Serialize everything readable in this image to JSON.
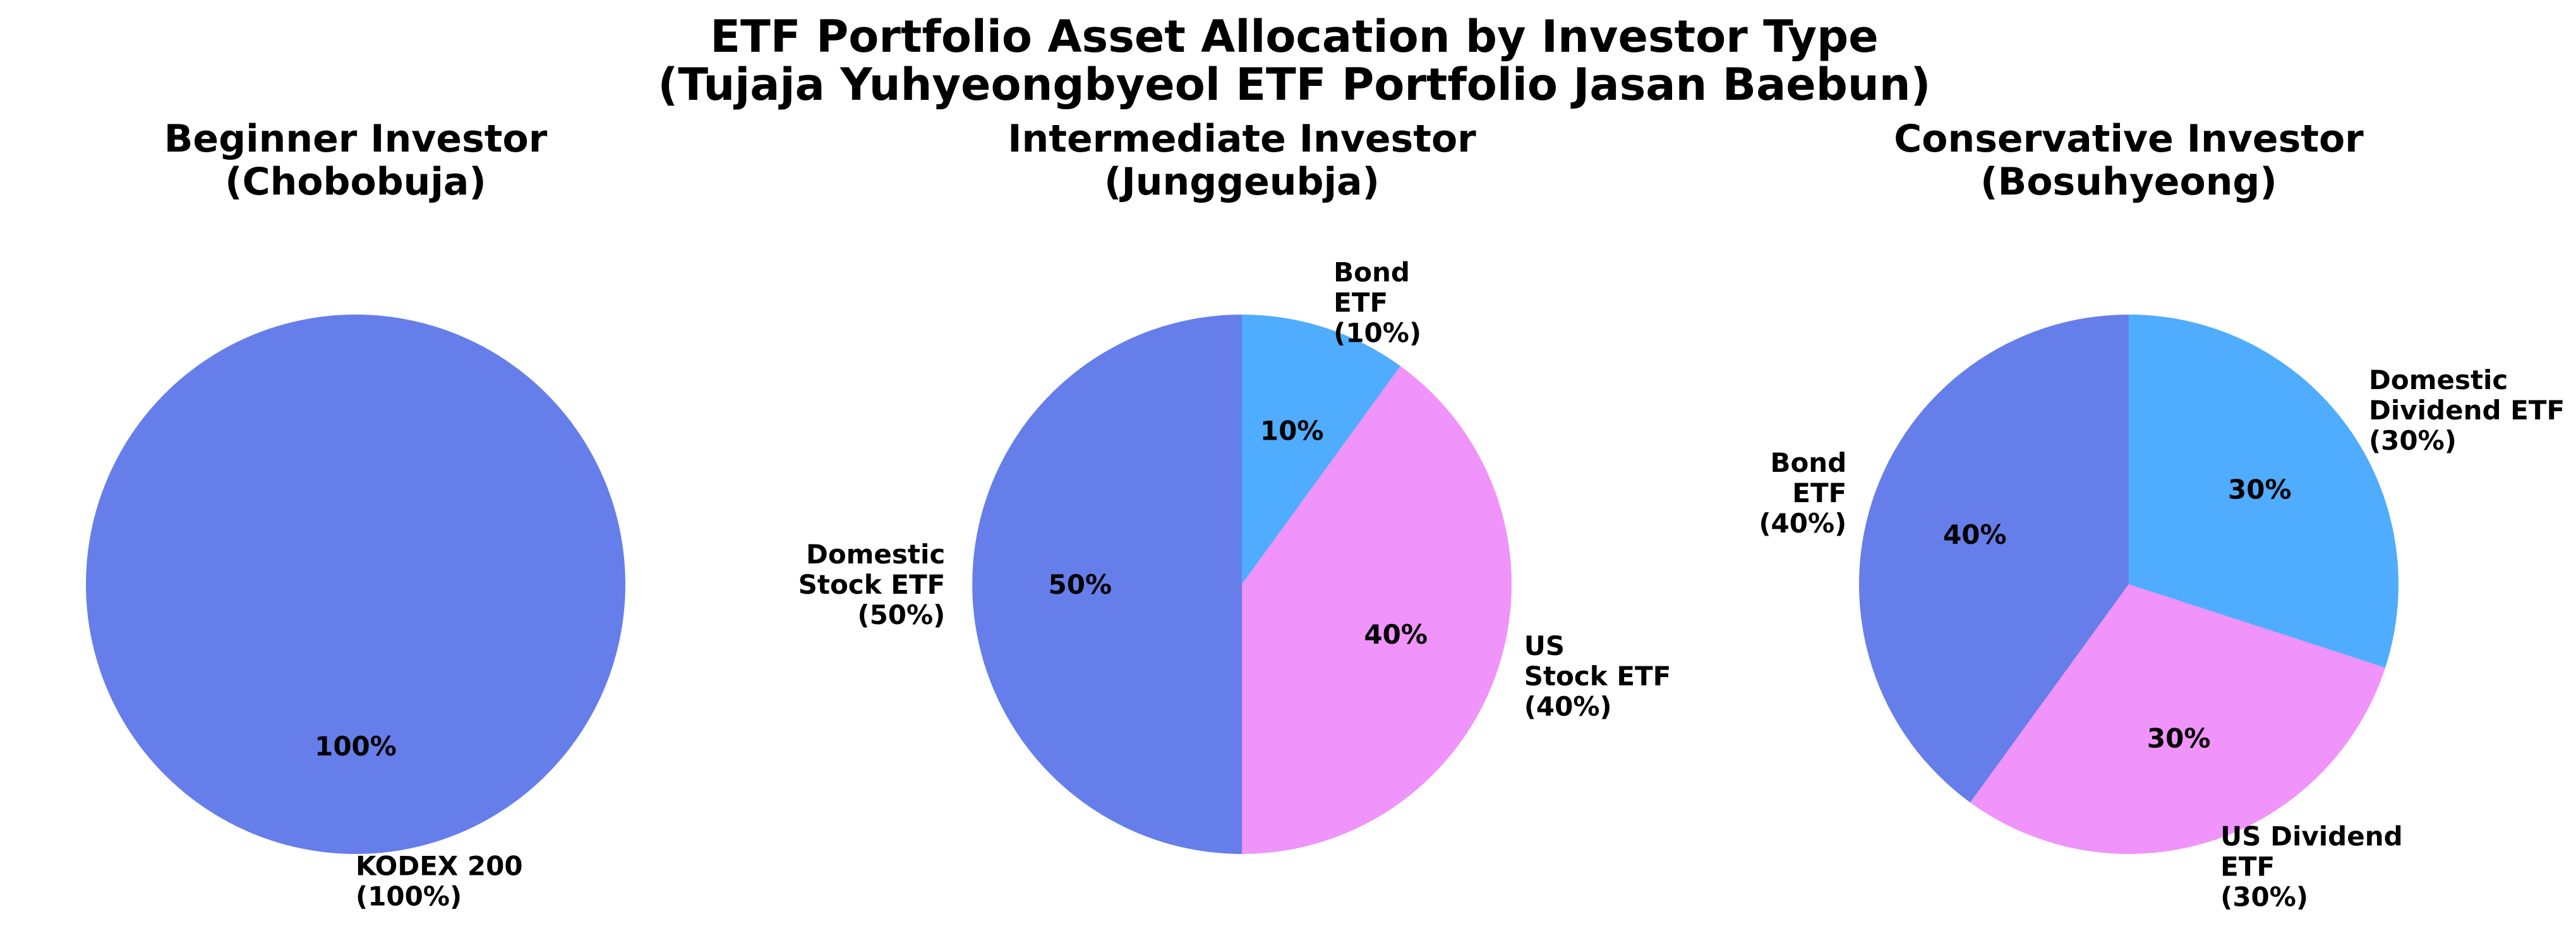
{
  "title": {
    "line1": "ETF Portfolio Asset Allocation by Investor Type",
    "line2": "(Tujaja Yuhyeongbyeol ETF Portfolio Jasan Baebun)"
  },
  "chart_data": [
    {
      "type": "pie",
      "title": [
        "Beginner Investor",
        "(Chobobuja)"
      ],
      "slices": [
        {
          "label": [
            "KODEX 200",
            "(100%)"
          ],
          "value": 100,
          "pct_label": "100%",
          "color": "#667eea"
        }
      ]
    },
    {
      "type": "pie",
      "title": [
        "Intermediate Investor",
        "(Junggeubja)"
      ],
      "slices": [
        {
          "label": [
            "Domestic",
            "Stock ETF",
            "(50%)"
          ],
          "value": 50,
          "pct_label": "50%",
          "color": "#667eea"
        },
        {
          "label": [
            "US",
            "Stock ETF",
            "(40%)"
          ],
          "value": 40,
          "pct_label": "40%",
          "color": "#f093fb"
        },
        {
          "label": [
            "Bond",
            "ETF",
            "(10%)"
          ],
          "value": 10,
          "pct_label": "10%",
          "color": "#4facfe"
        }
      ]
    },
    {
      "type": "pie",
      "title": [
        "Conservative Investor",
        "(Bosuhyeong)"
      ],
      "slices": [
        {
          "label": [
            "Bond",
            "ETF",
            "(40%)"
          ],
          "value": 40,
          "pct_label": "40%",
          "color": "#667eea"
        },
        {
          "label": [
            "US Dividend",
            "ETF",
            "(30%)"
          ],
          "value": 30,
          "pct_label": "30%",
          "color": "#f093fb"
        },
        {
          "label": [
            "Domestic",
            "Dividend ETF",
            "(30%)"
          ],
          "value": 30,
          "pct_label": "30%",
          "color": "#4facfe"
        }
      ]
    }
  ]
}
